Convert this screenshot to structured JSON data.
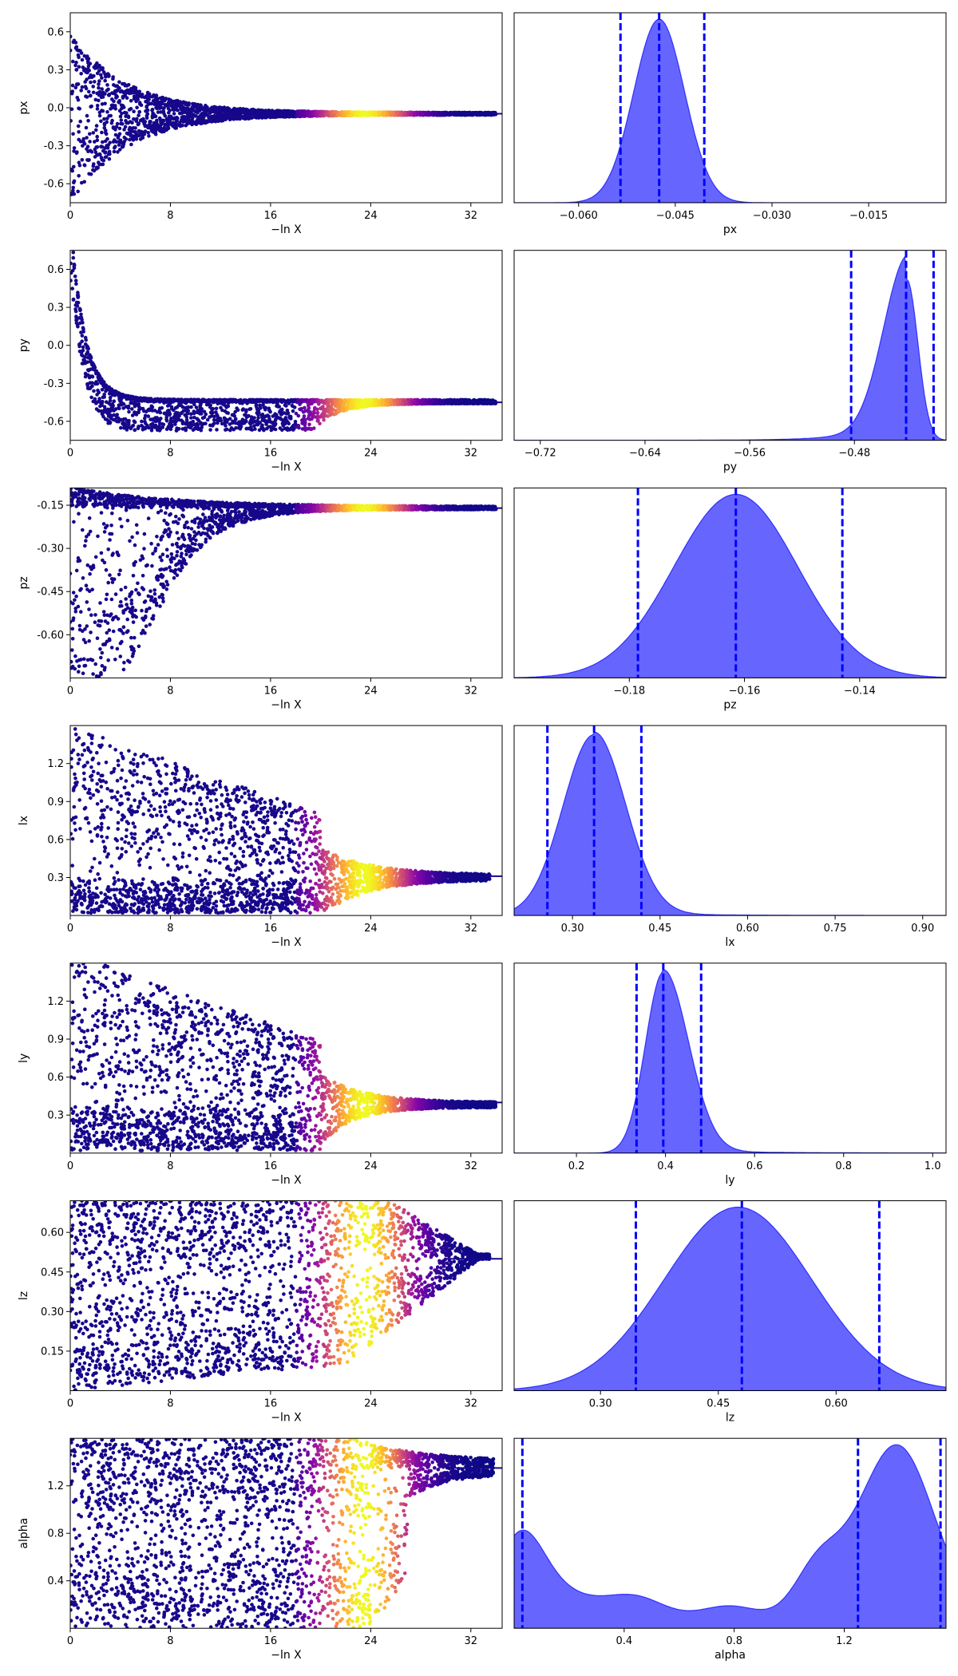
{
  "colors": {
    "posterior_fill": "#0000ff",
    "posterior_edge": "#0000ff",
    "quantile_line": "#0000ff",
    "trace_colormap": "plasma"
  },
  "chart_data": [
    {
      "type": "scatter",
      "panel": "trace",
      "param": "px",
      "xlabel": "−ln X",
      "ylabel": "px",
      "xlim": [
        0,
        34.5
      ],
      "ylim": [
        -0.75,
        0.75
      ],
      "xticks": [
        "0",
        "8",
        "16",
        "24",
        "32"
      ],
      "yticks": [
        "-0.6",
        "-0.3",
        "0.0",
        "0.3",
        "0.6"
      ],
      "converge_value": -0.047,
      "peak_weight_x": 23.5
    },
    {
      "type": "area",
      "panel": "posterior",
      "param": "px",
      "xlabel": "px",
      "xlim": [
        -0.07,
        -0.003
      ],
      "xticks": [
        "−0.060",
        "−0.045",
        "−0.030",
        "−0.015"
      ],
      "peak": -0.0475,
      "quantiles": [
        -0.0535,
        -0.0475,
        -0.0405
      ],
      "density_shape": "gaussian"
    },
    {
      "type": "scatter",
      "panel": "trace",
      "param": "py",
      "xlabel": "−ln X",
      "ylabel": "py",
      "xlim": [
        0,
        34.5
      ],
      "ylim": [
        -0.75,
        0.75
      ],
      "xticks": [
        "0",
        "8",
        "16",
        "24",
        "32"
      ],
      "yticks": [
        "-0.6",
        "-0.3",
        "0.0",
        "0.3",
        "0.6"
      ],
      "converge_value": -0.45,
      "peak_weight_x": 23.5
    },
    {
      "type": "area",
      "panel": "posterior",
      "param": "py",
      "xlabel": "py",
      "xlim": [
        -0.74,
        -0.41
      ],
      "xticks": [
        "−0.72",
        "−0.64",
        "−0.56",
        "−0.48"
      ],
      "peak": -0.44,
      "quantiles": [
        -0.4825,
        -0.4405,
        -0.4195
      ],
      "density_shape": "left-skewed"
    },
    {
      "type": "scatter",
      "panel": "trace",
      "param": "pz",
      "xlabel": "−ln X",
      "ylabel": "pz",
      "xlim": [
        0,
        34.5
      ],
      "ylim": [
        -0.75,
        -0.09
      ],
      "xticks": [
        "0",
        "8",
        "16",
        "24",
        "32"
      ],
      "yticks": [
        "-0.60",
        "-0.45",
        "-0.30",
        "-0.15"
      ],
      "converge_value": -0.16,
      "peak_weight_x": 23.5
    },
    {
      "type": "area",
      "panel": "posterior",
      "param": "pz",
      "xlabel": "pz",
      "xlim": [
        -0.2,
        -0.125
      ],
      "xticks": [
        "−0.18",
        "−0.16",
        "−0.14"
      ],
      "peak": -0.1615,
      "quantiles": [
        -0.1785,
        -0.1615,
        -0.143
      ],
      "density_shape": "gaussian"
    },
    {
      "type": "scatter",
      "panel": "trace",
      "param": "lx",
      "xlabel": "−ln X",
      "ylabel": "lx",
      "xlim": [
        0,
        34.5
      ],
      "ylim": [
        0.0,
        1.5
      ],
      "xticks": [
        "0",
        "8",
        "16",
        "24",
        "32"
      ],
      "yticks": [
        "0.3",
        "0.6",
        "0.9",
        "1.2"
      ],
      "converge_value": 0.31,
      "peak_weight_x": 23.5
    },
    {
      "type": "area",
      "panel": "posterior",
      "param": "lx",
      "xlabel": "lx",
      "xlim": [
        0.2,
        0.94
      ],
      "xticks": [
        "0.30",
        "0.45",
        "0.60",
        "0.75",
        "0.90"
      ],
      "peak": 0.337,
      "quantiles": [
        0.257,
        0.337,
        0.418
      ],
      "density_shape": "right-tail"
    },
    {
      "type": "scatter",
      "panel": "trace",
      "param": "ly",
      "xlabel": "−ln X",
      "ylabel": "ly",
      "xlim": [
        0,
        34.5
      ],
      "ylim": [
        0.0,
        1.5
      ],
      "xticks": [
        "0",
        "8",
        "16",
        "24",
        "32"
      ],
      "yticks": [
        "0.3",
        "0.6",
        "0.9",
        "1.2"
      ],
      "converge_value": 0.4,
      "peak_weight_x": 23.5
    },
    {
      "type": "area",
      "panel": "posterior",
      "param": "ly",
      "xlabel": "ly",
      "xlim": [
        0.06,
        1.03
      ],
      "xticks": [
        "0.2",
        "0.4",
        "0.6",
        "0.8",
        "1.0"
      ],
      "peak": 0.395,
      "quantiles": [
        0.335,
        0.395,
        0.48
      ],
      "density_shape": "right-tail"
    },
    {
      "type": "scatter",
      "panel": "trace",
      "param": "lz",
      "xlabel": "−ln X",
      "ylabel": "lz",
      "xlim": [
        0,
        34.5
      ],
      "ylim": [
        0.0,
        0.72
      ],
      "xticks": [
        "0",
        "8",
        "16",
        "24",
        "32"
      ],
      "yticks": [
        "0.15",
        "0.30",
        "0.45",
        "0.60"
      ],
      "converge_value": 0.5,
      "peak_weight_x": 23.5
    },
    {
      "type": "area",
      "panel": "posterior",
      "param": "lz",
      "xlabel": "lz",
      "xlim": [
        0.19,
        0.74
      ],
      "xticks": [
        "0.30",
        "0.45",
        "0.60"
      ],
      "peak": 0.475,
      "quantiles": [
        0.345,
        0.48,
        0.655
      ],
      "density_shape": "gaussian"
    },
    {
      "type": "scatter",
      "panel": "trace",
      "param": "alpha",
      "xlabel": "−ln X",
      "ylabel": "alpha",
      "xlim": [
        0,
        34.5
      ],
      "ylim": [
        0.0,
        1.6
      ],
      "xticks": [
        "0",
        "8",
        "16",
        "24",
        "32"
      ],
      "yticks": [
        "0.4",
        "0.8",
        "1.2"
      ],
      "converge_value": 1.35,
      "peak_weight_x": 23.5
    },
    {
      "type": "area",
      "panel": "posterior",
      "param": "alpha",
      "xlabel": "alpha",
      "xlim": [
        0.0,
        1.57
      ],
      "xticks": [
        "0.4",
        "0.8",
        "1.2"
      ],
      "peak": 1.38,
      "quantiles": [
        0.03,
        1.25,
        1.55
      ],
      "density_shape": "bimodal"
    }
  ]
}
